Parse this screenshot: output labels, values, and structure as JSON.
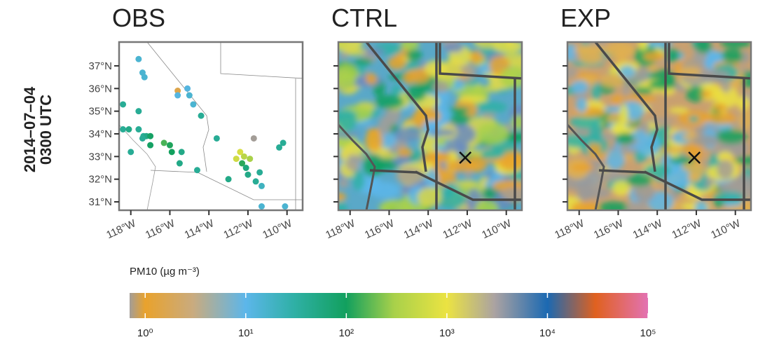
{
  "row_label": [
    "2014–07–04",
    "0300 UTC"
  ],
  "chart_data": [
    {
      "type": "scatter",
      "title": "OBS",
      "x": [
        -117.6,
        -117.4,
        -117.3,
        -118.4,
        -118.4,
        -118.1,
        -117.6,
        -117.6,
        -117.35,
        -117.2,
        -117.0,
        -117.0,
        -117.4,
        -118.0,
        -116.3,
        -116.0,
        -115.9,
        -115.4,
        -115.5,
        -115.6,
        -115.6,
        -115.1,
        -115.0,
        -114.8,
        -114.4,
        -114.6,
        -113.6,
        -113.0,
        -112.6,
        -112.4,
        -112.2,
        -112.3,
        -112.1,
        -111.9,
        -111.7,
        -112.0,
        -111.4,
        -111.3,
        -111.3,
        -110.4,
        -110.2,
        -110.1,
        -111.6
      ],
      "y": [
        37.3,
        36.7,
        36.5,
        35.3,
        34.2,
        34.2,
        35.0,
        34.2,
        33.9,
        33.9,
        33.9,
        33.5,
        33.8,
        33.2,
        33.6,
        33.5,
        33.2,
        33.2,
        32.7,
        35.9,
        35.7,
        36.0,
        35.7,
        35.3,
        34.8,
        32.4,
        33.8,
        32.0,
        32.9,
        33.2,
        33.0,
        32.7,
        32.5,
        32.9,
        33.8,
        32.2,
        32.3,
        31.7,
        30.8,
        33.4,
        33.6,
        30.8,
        31.9
      ],
      "values": [
        15,
        15,
        15,
        40,
        40,
        50,
        40,
        40,
        40,
        50,
        90,
        90,
        40,
        40,
        150,
        110,
        100,
        50,
        50,
        1.5,
        12,
        12,
        15,
        15,
        40,
        40,
        40,
        50,
        600,
        700,
        400,
        120,
        60,
        300,
        0.7,
        50,
        40,
        20,
        15,
        40,
        40,
        15,
        40
      ],
      "xlim": [
        -118.6,
        -109.2
      ],
      "ylim": [
        30.63,
        38.05
      ],
      "xticks": [
        {
          "value": -118,
          "label": "118°W"
        },
        {
          "value": -116,
          "label": "116°W"
        },
        {
          "value": -114,
          "label": "114°W"
        },
        {
          "value": -112,
          "label": "112°W"
        },
        {
          "value": -110,
          "label": "110°W"
        }
      ],
      "yticks": [
        {
          "value": 31,
          "label": "31°N"
        },
        {
          "value": 32,
          "label": "32°N"
        },
        {
          "value": 33,
          "label": "33°N"
        },
        {
          "value": 34,
          "label": "34°N"
        },
        {
          "value": 35,
          "label": "35°N"
        },
        {
          "value": 36,
          "label": "36°N"
        },
        {
          "value": 37,
          "label": "37°N"
        }
      ],
      "ytick_labels": true
    },
    {
      "type": "field",
      "title": "CTRL",
      "marker": {
        "x": -112.1,
        "y": 32.95
      },
      "xlim": [
        -118.6,
        -109.2
      ],
      "ylim": [
        30.63,
        38.05
      ],
      "xticks": [
        {
          "value": -118,
          "label": "118°W"
        },
        {
          "value": -116,
          "label": "116°W"
        },
        {
          "value": -114,
          "label": "114°W"
        },
        {
          "value": -112,
          "label": "112°W"
        },
        {
          "value": -110,
          "label": "110°W"
        }
      ],
      "yticks": [
        31,
        32,
        33,
        34,
        35,
        36,
        37
      ],
      "ytick_labels": false
    },
    {
      "type": "field",
      "title": "EXP",
      "marker": {
        "x": -112.1,
        "y": 32.95
      },
      "xlim": [
        -118.6,
        -109.2
      ],
      "ylim": [
        30.63,
        38.05
      ],
      "xticks": [
        {
          "value": -118,
          "label": "118°W"
        },
        {
          "value": -116,
          "label": "116°W"
        },
        {
          "value": -114,
          "label": "114°W"
        },
        {
          "value": -112,
          "label": "112°W"
        },
        {
          "value": -110,
          "label": "110°W"
        }
      ],
      "yticks": [
        31,
        32,
        33,
        34,
        35,
        36,
        37
      ],
      "ytick_labels": false
    }
  ],
  "colorbar": {
    "label": "PM10 (µg m⁻³)",
    "scale": "log",
    "lim": [
      0.7,
      100000
    ],
    "ticks": [
      {
        "value": 1,
        "label": "10⁰"
      },
      {
        "value": 10,
        "label": "10¹"
      },
      {
        "value": 100,
        "label": "10²"
      },
      {
        "value": 1000,
        "label": "10³"
      },
      {
        "value": 10000,
        "label": "10⁴"
      },
      {
        "value": 100000,
        "label": "10⁵"
      }
    ],
    "stops": [
      {
        "value": 0.7,
        "color": "#a39d97"
      },
      {
        "value": 1,
        "color": "#e9a22c"
      },
      {
        "value": 3,
        "color": "#c9ab7f"
      },
      {
        "value": 10,
        "color": "#5cb6ea"
      },
      {
        "value": 30,
        "color": "#2fb0a6"
      },
      {
        "value": 100,
        "color": "#12a05e"
      },
      {
        "value": 300,
        "color": "#a9d14a"
      },
      {
        "value": 1000,
        "color": "#ebe342"
      },
      {
        "value": 3000,
        "color": "#aaa2a2"
      },
      {
        "value": 10000,
        "color": "#1b69b2"
      },
      {
        "value": 30000,
        "color": "#e0611f"
      },
      {
        "value": 100000,
        "color": "#e372b3"
      }
    ]
  }
}
